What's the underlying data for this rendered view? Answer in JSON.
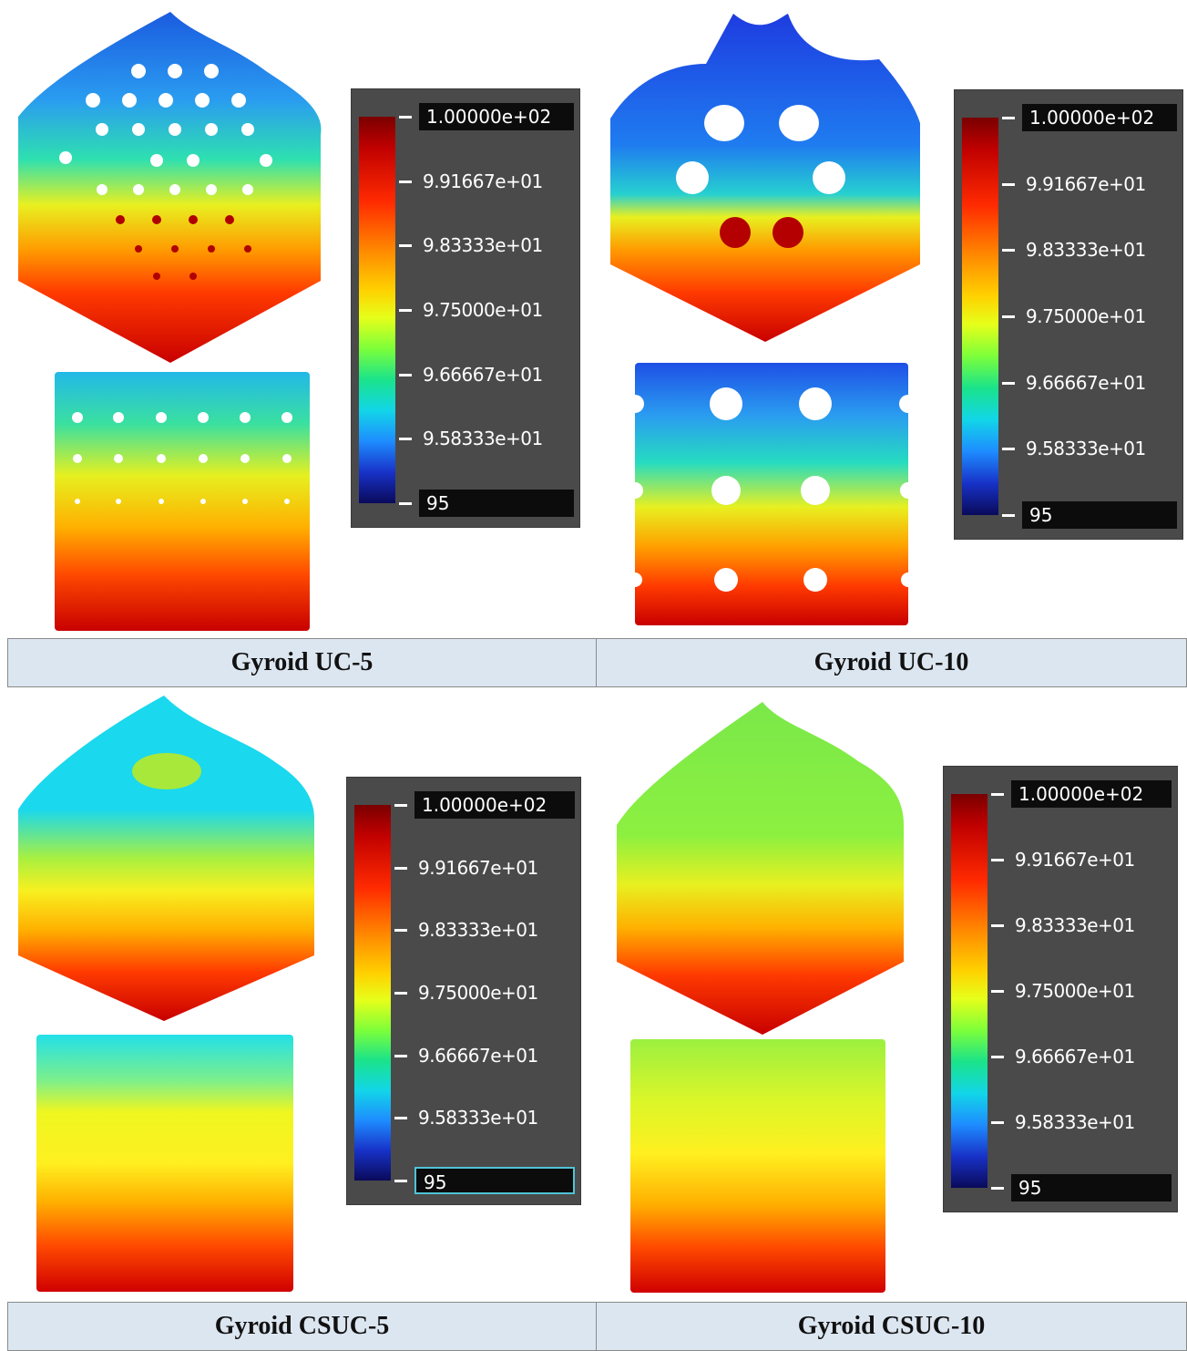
{
  "legend": {
    "labels": [
      "1.00000e+02",
      "9.91667e+01",
      "9.83333e+01",
      "9.75000e+01",
      "9.66667e+01",
      "9.58333e+01",
      "95"
    ]
  },
  "panels": [
    {
      "caption": "Gyroid UC-5"
    },
    {
      "caption": "Gyroid UC-10"
    },
    {
      "caption": "Gyroid CSUC-5"
    },
    {
      "caption": "Gyroid CSUC-10"
    }
  ],
  "colors": {
    "hot": "#c00000",
    "cold": "#1e3cdc",
    "caption_bg": "#dce6f1",
    "legend_bg": "#4a4a4a"
  }
}
